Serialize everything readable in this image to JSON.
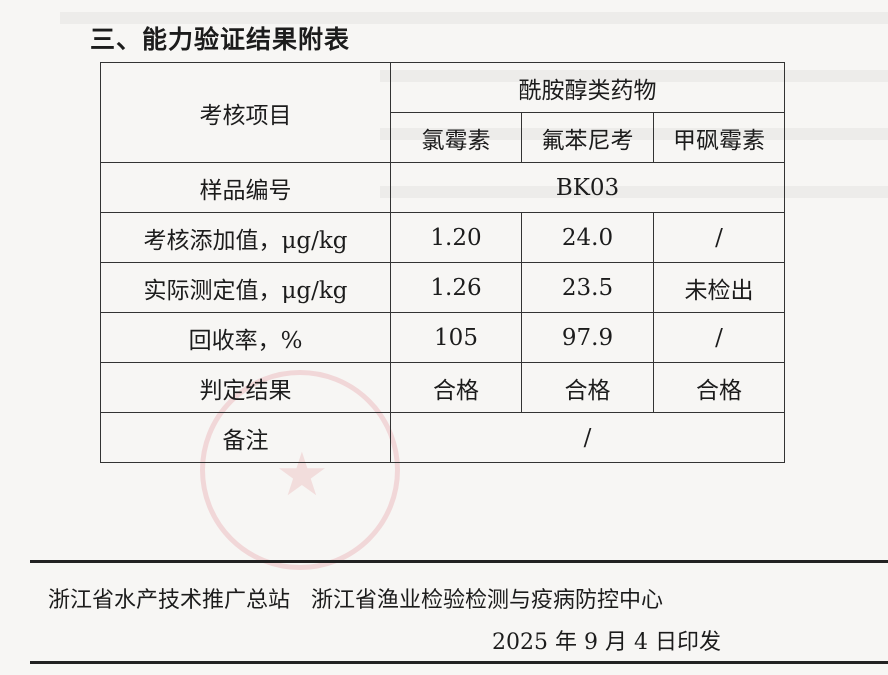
{
  "title": "三、能力验证结果附表",
  "table": {
    "item_header": "考核项目",
    "group_header": "酰胺醇类药物",
    "drugs": [
      "氯霉素",
      "氟苯尼考",
      "甲砜霉素"
    ],
    "sample": {
      "label": "样品编号",
      "value": "BK03"
    },
    "rows": [
      {
        "label": "考核添加值，μg/kg",
        "values": [
          "1.20",
          "24.0",
          "/"
        ]
      },
      {
        "label": "实际测定值，μg/kg",
        "values": [
          "1.26",
          "23.5",
          "未检出"
        ]
      },
      {
        "label": "回收率，%",
        "values": [
          "105",
          "97.9",
          "/"
        ]
      },
      {
        "label": "判定结果",
        "values": [
          "合格",
          "合格",
          "合格"
        ]
      }
    ],
    "remark": {
      "label": "备注",
      "value": "/"
    }
  },
  "footer": {
    "org1": "浙江省水产技术推广总站",
    "org2": "浙江省渔业检验检测与疫病防控中心",
    "date": "2025 年 9 月 4 日印发"
  },
  "colors": {
    "stamp": "#d7505a"
  }
}
